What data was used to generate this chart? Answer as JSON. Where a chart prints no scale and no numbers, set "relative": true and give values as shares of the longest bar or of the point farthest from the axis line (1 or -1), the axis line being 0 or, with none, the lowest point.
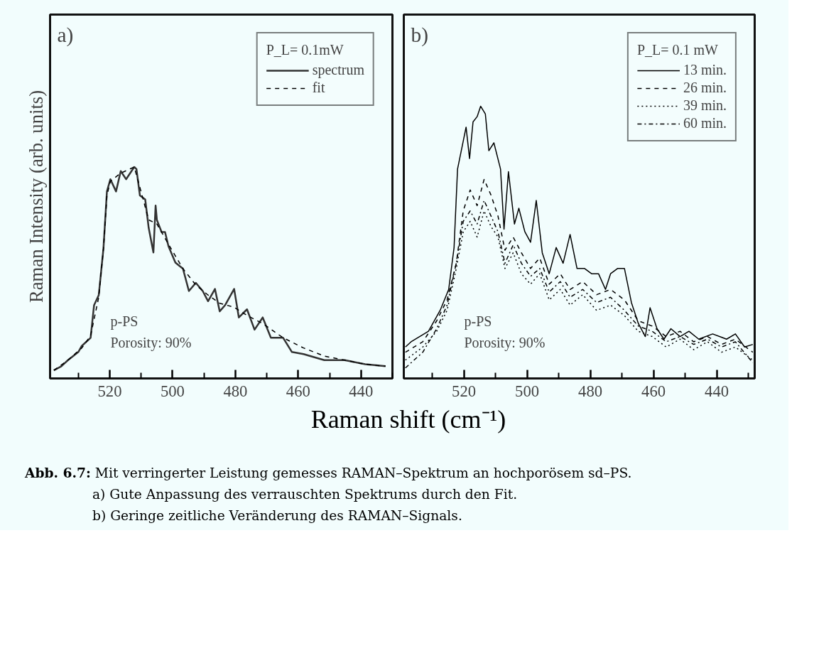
{
  "chart_data": [
    {
      "type": "line",
      "relative": true,
      "ylabel": "Raman Intensity (arb. units)",
      "xlabel": "Raman shift (cm⁻¹)",
      "legend_title": "P_L= 0.1mW",
      "legend": "top right",
      "grid": false,
      "xlim": [
        539,
        430
      ],
      "xticks": [
        {
          "value": 530,
          "label": null
        },
        520,
        {
          "value": 510,
          "label": null
        },
        500,
        {
          "value": 490,
          "label": null
        },
        480,
        {
          "value": 470,
          "label": null
        },
        460,
        {
          "value": 450,
          "label": null
        },
        440,
        {
          "value": 430,
          "label": null
        }
      ],
      "annotations": [
        "a)",
        "p-PS",
        "Porosity: 90%"
      ],
      "series": [
        {
          "name": "spectrum",
          "color": "#333333",
          "line_style": "solid",
          "x": [
            537.8,
            535.4,
            533.3,
            530.0,
            528.9,
            526.1,
            525.0,
            523.5,
            522.0,
            520.9,
            519.8,
            518.0,
            516.5,
            514.8,
            512.2,
            511.5,
            510.4,
            508.7,
            507.6,
            506.1,
            505.4,
            505.0,
            503.5,
            502.4,
            501.3,
            499.1,
            496.7,
            494.8,
            492.6,
            490.4,
            488.7,
            486.5,
            485.0,
            483.3,
            482.2,
            480.4,
            478.9,
            476.3,
            473.9,
            471.3,
            468.7,
            464.8,
            462.0,
            458.3,
            451.7,
            445.2,
            438.7,
            432.2
          ],
          "values": [
            0.0,
            0.02,
            0.05,
            0.09,
            0.12,
            0.16,
            0.32,
            0.37,
            0.6,
            0.88,
            0.94,
            0.88,
            0.98,
            0.94,
            1.0,
            0.99,
            0.86,
            0.84,
            0.7,
            0.58,
            0.81,
            0.74,
            0.68,
            0.68,
            0.61,
            0.53,
            0.5,
            0.39,
            0.43,
            0.39,
            0.34,
            0.4,
            0.29,
            0.32,
            0.35,
            0.4,
            0.26,
            0.3,
            0.2,
            0.26,
            0.16,
            0.16,
            0.09,
            0.08,
            0.05,
            0.05,
            0.03,
            0.02
          ]
        },
        {
          "name": "fit",
          "color": "#000000",
          "line_style": "dashed",
          "x": [
            537.8,
            533.3,
            528.9,
            526.1,
            523.5,
            522.0,
            520.9,
            519.8,
            516.5,
            512.2,
            510.4,
            507.6,
            505.0,
            501.3,
            496.7,
            492.6,
            488.7,
            485.0,
            480.4,
            476.3,
            471.3,
            464.8,
            458.3,
            451.7,
            445.2,
            438.7,
            432.2
          ],
          "values": [
            0.0,
            0.05,
            0.11,
            0.17,
            0.36,
            0.6,
            0.86,
            0.93,
            0.97,
            1.0,
            0.9,
            0.74,
            0.72,
            0.62,
            0.5,
            0.42,
            0.37,
            0.33,
            0.31,
            0.27,
            0.23,
            0.16,
            0.11,
            0.07,
            0.05,
            0.03,
            0.02
          ]
        }
      ]
    },
    {
      "type": "line",
      "relative": true,
      "legend_title": "P_L= 0.1 mW",
      "legend": "top right",
      "grid": false,
      "xlim": [
        539,
        428
      ],
      "xticks": [
        {
          "value": 530,
          "label": null
        },
        520,
        {
          "value": 510,
          "label": null
        },
        500,
        {
          "value": 490,
          "label": null
        },
        480,
        {
          "value": 470,
          "label": null
        },
        460,
        {
          "value": 450,
          "label": null
        },
        440,
        {
          "value": 430,
          "label": null
        }
      ],
      "annotations": [
        "b)",
        "p-PS",
        "Porosity: 90%",
        "Abb. 6.7: Mit verringerter Leistung gemesses RAMAN–Spektrum an hochporösem sd–PS.",
        "a) Gute Anpassung des verrauschten Spektrums durch den Fit.",
        "b) Geringe zeitliche Veränderung des RAMAN–Signals."
      ],
      "x": [
        538.5,
        533.0,
        528.6,
        525.3,
        522.4,
        520.2,
        518.0,
        515.8,
        513.6,
        511.4,
        509.2,
        507.0,
        504.4,
        501.8,
        498.9,
        496.0,
        493.0,
        489.5,
        486.4,
        482.4,
        478.0,
        473.6,
        469.2,
        464.8,
        460.4,
        456.0,
        451.6,
        447.3,
        442.9,
        438.5,
        434.1,
        428.6
      ],
      "series": [
        {
          "name": "13 min.",
          "color": "#000000",
          "line_style": "solid",
          "x": [
            538.5,
            536.7,
            531.2,
            527.5,
            524.8,
            523.1,
            522.0,
            519.3,
            518.2,
            517.1,
            515.8,
            514.7,
            513.2,
            512.1,
            510.5,
            508.4,
            507.3,
            505.9,
            504.0,
            502.6,
            500.7,
            498.9,
            497.1,
            495.2,
            493.0,
            490.8,
            488.6,
            486.4,
            484.2,
            481.8,
            479.6,
            477.4,
            475.2,
            473.6,
            471.4,
            469.2,
            467.0,
            464.8,
            462.6,
            461.1,
            458.9,
            456.7,
            454.5,
            451.6,
            448.8,
            445.7,
            441.3,
            436.9,
            434.1,
            431.2,
            428.6
          ],
          "values": [
            0.08,
            0.1,
            0.14,
            0.22,
            0.3,
            0.46,
            0.76,
            0.92,
            0.8,
            0.94,
            0.96,
            1.0,
            0.97,
            0.83,
            0.86,
            0.76,
            0.53,
            0.75,
            0.55,
            0.61,
            0.52,
            0.48,
            0.64,
            0.44,
            0.36,
            0.46,
            0.4,
            0.51,
            0.38,
            0.38,
            0.36,
            0.36,
            0.3,
            0.36,
            0.38,
            0.38,
            0.25,
            0.17,
            0.12,
            0.23,
            0.15,
            0.11,
            0.15,
            0.12,
            0.14,
            0.11,
            0.13,
            0.11,
            0.13,
            0.08,
            0.09
          ]
        },
        {
          "name": "26 min.",
          "color": "#000000",
          "line_style": "dashed",
          "values": [
            0.06,
            0.1,
            0.18,
            0.26,
            0.4,
            0.6,
            0.68,
            0.62,
            0.72,
            0.66,
            0.58,
            0.45,
            0.5,
            0.44,
            0.38,
            0.42,
            0.32,
            0.36,
            0.3,
            0.33,
            0.28,
            0.3,
            0.26,
            0.18,
            0.16,
            0.12,
            0.14,
            0.1,
            0.12,
            0.09,
            0.11,
            0.06
          ]
        },
        {
          "name": "39 min.",
          "color": "#000000",
          "line_style": "dotted",
          "values": [
            0.03,
            0.08,
            0.14,
            0.22,
            0.38,
            0.52,
            0.56,
            0.5,
            0.6,
            0.54,
            0.5,
            0.38,
            0.44,
            0.36,
            0.32,
            0.36,
            0.26,
            0.3,
            0.24,
            0.28,
            0.22,
            0.24,
            0.2,
            0.14,
            0.12,
            0.08,
            0.11,
            0.07,
            0.1,
            0.06,
            0.08,
            0.03
          ]
        },
        {
          "name": "60 min.",
          "color": "#000000",
          "line_style": "dashdot",
          "values": [
            0.0,
            0.06,
            0.15,
            0.24,
            0.4,
            0.56,
            0.6,
            0.55,
            0.64,
            0.58,
            0.52,
            0.4,
            0.47,
            0.4,
            0.35,
            0.38,
            0.29,
            0.33,
            0.27,
            0.3,
            0.25,
            0.27,
            0.22,
            0.16,
            0.14,
            0.1,
            0.12,
            0.09,
            0.11,
            0.08,
            0.1,
            0.02
          ]
        }
      ]
    }
  ]
}
